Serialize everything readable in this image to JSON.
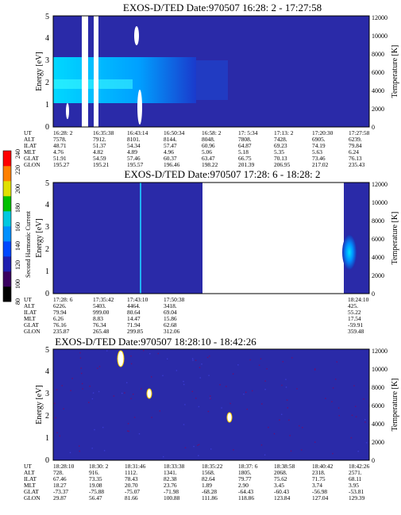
{
  "panels": [
    {
      "title": "EXOS-D/TED   Date:970507  16:28: 2 - 17:27:58",
      "ylabel": "Energy [eV]",
      "y2label": "Temperature [K]",
      "yticks": [
        "0",
        "1",
        "2",
        "3",
        "4",
        "5"
      ],
      "y2ticks": [
        "0",
        "2000",
        "4000",
        "6000",
        "8000",
        "10000",
        "12000"
      ],
      "row_labels": [
        "UT",
        "ALT",
        "ILAT",
        "MLT",
        "GLAT",
        "GLON"
      ],
      "columns": [
        [
          "16:28: 2",
          "7578.",
          "48.71",
          "4.76",
          "51.91",
          "195.27"
        ],
        [
          "16:35:38",
          "7912.",
          "51.37",
          "4.82",
          "54.59",
          "195.21"
        ],
        [
          "16:43:14",
          "8101.",
          "54.34",
          "4.89",
          "57.46",
          "195.57"
        ],
        [
          "16:50:34",
          "8144.",
          "57.47",
          "4.96",
          "60.37",
          "196.46"
        ],
        [
          "16:58: 2",
          "8048.",
          "60.96",
          "5.06",
          "63.47",
          "198.22"
        ],
        [
          "17: 5:34",
          "7808.",
          "64.87",
          "5.18",
          "66.75",
          "201.39"
        ],
        [
          "17:13: 2",
          "7428.",
          "69.23",
          "5.35",
          "70.13",
          "206.95"
        ],
        [
          "17:20:30",
          "6905.",
          "74.19",
          "5.63",
          "73.46",
          "217.02"
        ],
        [
          "17:27:58",
          "6239.",
          "79.84",
          "6.24",
          "76.13",
          "235.43"
        ]
      ]
    },
    {
      "title": "EXOS-D/TED   Date:970507  17:28: 6 - 18:28: 2",
      "ylabel": "Energy [eV]",
      "y2label": "Temperature [K]",
      "yticks": [
        "0",
        "1",
        "2",
        "3",
        "4",
        "5"
      ],
      "y2ticks": [
        "0",
        "2000",
        "4000",
        "6000",
        "8000",
        "10000",
        "12000"
      ],
      "row_labels": [
        "UT",
        "ALT",
        "ILAT",
        "MLT",
        "GLAT",
        "GLON"
      ],
      "columns": [
        [
          "17:28: 6",
          "6226.",
          "79.94",
          "6.26",
          "76.16",
          "235.87"
        ],
        [
          "17:35:42",
          "5403.",
          "999.00",
          "8.83",
          "76.34",
          "265.48"
        ],
        [
          "17:43:10",
          "4464.",
          "80.64",
          "14.47",
          "71.94",
          "299.85"
        ],
        [
          "17:50:38",
          "3418.",
          "69.04",
          "15.86",
          "62.68",
          "312.06"
        ],
        [
          "18:24:10",
          "425.",
          "55.22",
          "17.54",
          "-59.91",
          "359.48"
        ]
      ]
    },
    {
      "title": "EXOS-D/TED   Date:970507  18:28:10 - 18:42:26",
      "ylabel": "Energy [eV]",
      "y2label": "Temperature [K]",
      "yticks": [
        "0",
        "1",
        "2",
        "3",
        "4",
        "5"
      ],
      "y2ticks": [
        "0",
        "2000",
        "4000",
        "6000",
        "8000",
        "10000",
        "12000"
      ],
      "row_labels": [
        "UT",
        "ALT",
        "ILAT",
        "MLT",
        "GLAT",
        "GLON"
      ],
      "columns": [
        [
          "18:28:10",
          "728.",
          "67.46",
          "18.27",
          "-73.37",
          "29.87"
        ],
        [
          "18:30: 2",
          "916.",
          "73.35",
          "19.08",
          "-75.88",
          "56.47"
        ],
        [
          "18:31:46",
          "1112.",
          "78.43",
          "20.70",
          "-75.07",
          "81.66"
        ],
        [
          "18:33:38",
          "1341.",
          "82.38",
          "23.76",
          "-71.98",
          "100.88"
        ],
        [
          "18:35:22",
          "1568.",
          "82.64",
          "1.89",
          "-68.28",
          "111.86"
        ],
        [
          "18:37: 6",
          "1805.",
          "79.77",
          "2.90",
          "-64.43",
          "118.86"
        ],
        [
          "18:38:58",
          "2068.",
          "75.62",
          "3.45",
          "-60.43",
          "123.84"
        ],
        [
          "18:40:42",
          "2318.",
          "71.75",
          "3.74",
          "-56.98",
          "127.04"
        ],
        [
          "18:42:26",
          "2571.",
          "68.11",
          "3.95",
          "-53.81",
          "129.39"
        ]
      ]
    }
  ],
  "colorbar": {
    "label": "Second Harmonic Current",
    "ticks": [
      "80",
      "100",
      "120",
      "140",
      "160",
      "180",
      "200",
      "220",
      "240"
    ],
    "colors": [
      "#000000",
      "#3a0060",
      "#1f1fb0",
      "#0048ff",
      "#0090ff",
      "#00c8e0",
      "#00c000",
      "#e0e000",
      "#ff8000",
      "#ff0000"
    ]
  },
  "chart_data": [
    {
      "type": "heatmap",
      "title": "EXOS-D/TED   Date:970507  16:28: 2 - 17:27:58",
      "xlabel": "UT",
      "ylabel": "Energy [eV]",
      "y2label": "Temperature [K]",
      "ylim": [
        0,
        5
      ],
      "y2lim": [
        0,
        12000
      ],
      "x": [
        "16:28: 2",
        "16:35:38",
        "16:43:14",
        "16:50:34",
        "16:58: 2",
        "17: 5:34",
        "17:13: 2",
        "17:20:30",
        "17:27:58"
      ],
      "features": [
        {
          "kind": "band",
          "time_from": "16:28: 2",
          "time_to": "16:50:34",
          "energy_center": 2.1,
          "energy_width": 1.4,
          "level": "high"
        },
        {
          "kind": "gap",
          "time_at": "16:35:38"
        },
        {
          "kind": "gap",
          "time_at": "16:43:14"
        }
      ]
    },
    {
      "type": "heatmap",
      "title": "EXOS-D/TED   Date:970507  17:28: 6 - 18:28: 2",
      "xlabel": "UT",
      "ylabel": "Energy [eV]",
      "y2label": "Temperature [K]",
      "ylim": [
        0,
        5
      ],
      "y2lim": [
        0,
        12000
      ],
      "x": [
        "17:28: 6",
        "17:35:42",
        "17:43:10",
        "17:50:38",
        "18:24:10"
      ],
      "features": [
        {
          "kind": "no_data",
          "time_from": "17:53:00",
          "time_to": "18:24:10"
        },
        {
          "kind": "spot",
          "time_at": "18:26:00",
          "energy_center": 1.8,
          "level": "high"
        }
      ]
    },
    {
      "type": "heatmap",
      "title": "EXOS-D/TED   Date:970507  18:28:10 - 18:42:26",
      "xlabel": "UT",
      "ylabel": "Energy [eV]",
      "y2label": "Temperature [K]",
      "ylim": [
        0,
        5
      ],
      "y2lim": [
        0,
        12000
      ],
      "x": [
        "18:28:10",
        "18:30: 2",
        "18:31:46",
        "18:33:38",
        "18:35:22",
        "18:37: 6",
        "18:38:58",
        "18:40:42",
        "18:42:26"
      ],
      "features": [
        {
          "kind": "blob",
          "time_at": "18:31:46",
          "energy_center": 4.7
        },
        {
          "kind": "blob",
          "time_at": "18:32:40",
          "energy_center": 3.0
        },
        {
          "kind": "blob",
          "time_at": "18:35:48",
          "energy_center": 1.5
        }
      ]
    }
  ]
}
